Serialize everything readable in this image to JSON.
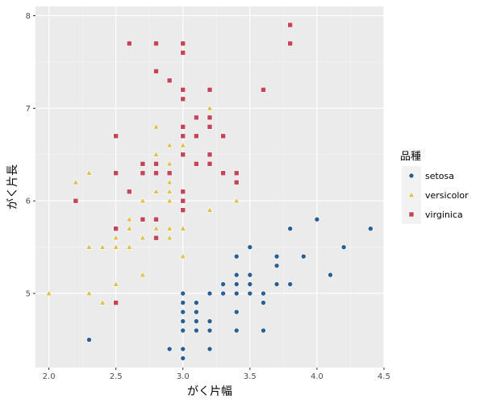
{
  "chart_data": {
    "type": "scatter",
    "title": "",
    "xlabel": "がく片幅",
    "ylabel": "がく片長",
    "xlim": [
      1.9,
      4.5
    ],
    "ylim": [
      4.2,
      8.1
    ],
    "x_ticks": [
      2.0,
      2.5,
      3.0,
      3.5,
      4.0,
      4.5
    ],
    "x_tick_labels": [
      "2.0",
      "2.5",
      "3.0",
      "3.5",
      "4.0",
      "4.5"
    ],
    "y_ticks": [
      5,
      6,
      7,
      8
    ],
    "y_tick_labels": [
      "5",
      "6",
      "7",
      "8"
    ],
    "grid": true,
    "legend": {
      "title": "品種",
      "placement": "right"
    },
    "series": [
      {
        "name": "setosa",
        "marker": "circle",
        "color": "#2b5f93",
        "points": [
          [
            2.3,
            4.5
          ],
          [
            2.9,
            4.4
          ],
          [
            3.0,
            4.4
          ],
          [
            3.2,
            4.4
          ],
          [
            3.0,
            4.3
          ],
          [
            3.0,
            5.0
          ],
          [
            3.0,
            4.9
          ],
          [
            3.0,
            4.8
          ],
          [
            3.0,
            4.7
          ],
          [
            3.0,
            4.6
          ],
          [
            3.1,
            4.9
          ],
          [
            3.1,
            4.8
          ],
          [
            3.1,
            4.7
          ],
          [
            3.1,
            4.6
          ],
          [
            3.2,
            5.0
          ],
          [
            3.2,
            4.7
          ],
          [
            3.2,
            4.6
          ],
          [
            3.3,
            5.0
          ],
          [
            3.3,
            5.1
          ],
          [
            3.4,
            5.4
          ],
          [
            3.4,
            5.2
          ],
          [
            3.4,
            5.1
          ],
          [
            3.4,
            5.0
          ],
          [
            3.4,
            4.8
          ],
          [
            3.4,
            4.6
          ],
          [
            3.5,
            5.5
          ],
          [
            3.5,
            5.2
          ],
          [
            3.5,
            5.1
          ],
          [
            3.5,
            5.0
          ],
          [
            3.6,
            5.0
          ],
          [
            3.6,
            4.9
          ],
          [
            3.6,
            4.6
          ],
          [
            3.7,
            5.4
          ],
          [
            3.7,
            5.3
          ],
          [
            3.7,
            5.1
          ],
          [
            3.8,
            5.7
          ],
          [
            3.8,
            5.1
          ],
          [
            3.9,
            5.4
          ],
          [
            4.0,
            5.8
          ],
          [
            4.1,
            5.2
          ],
          [
            4.2,
            5.5
          ],
          [
            4.4,
            5.7
          ]
        ]
      },
      {
        "name": "versicolor",
        "marker": "triangle",
        "color": "#e0c04e",
        "points": [
          [
            2.0,
            5.0
          ],
          [
            2.2,
            6.2
          ],
          [
            2.2,
            6.0
          ],
          [
            2.3,
            6.3
          ],
          [
            2.3,
            5.5
          ],
          [
            2.3,
            5.0
          ],
          [
            2.4,
            5.5
          ],
          [
            2.4,
            4.9
          ],
          [
            2.5,
            5.7
          ],
          [
            2.5,
            5.6
          ],
          [
            2.5,
            5.5
          ],
          [
            2.5,
            5.1
          ],
          [
            2.6,
            5.8
          ],
          [
            2.6,
            5.7
          ],
          [
            2.6,
            5.5
          ],
          [
            2.7,
            6.0
          ],
          [
            2.7,
            5.8
          ],
          [
            2.7,
            5.6
          ],
          [
            2.7,
            5.2
          ],
          [
            2.8,
            6.8
          ],
          [
            2.8,
            6.5
          ],
          [
            2.8,
            6.1
          ],
          [
            2.8,
            5.7
          ],
          [
            2.9,
            6.6
          ],
          [
            2.9,
            6.4
          ],
          [
            2.9,
            6.2
          ],
          [
            2.9,
            6.1
          ],
          [
            2.9,
            6.0
          ],
          [
            2.9,
            5.7
          ],
          [
            2.9,
            5.6
          ],
          [
            3.0,
            6.7
          ],
          [
            3.0,
            6.6
          ],
          [
            3.0,
            6.1
          ],
          [
            3.0,
            5.9
          ],
          [
            3.0,
            5.7
          ],
          [
            3.0,
            5.4
          ],
          [
            3.2,
            7.0
          ],
          [
            3.2,
            6.4
          ],
          [
            3.2,
            5.9
          ],
          [
            3.3,
            6.3
          ],
          [
            3.4,
            6.0
          ]
        ]
      },
      {
        "name": "virginica",
        "marker": "square",
        "color": "#c2455a",
        "points": [
          [
            2.2,
            6.0
          ],
          [
            2.5,
            6.7
          ],
          [
            2.5,
            6.3
          ],
          [
            2.5,
            5.7
          ],
          [
            2.5,
            4.9
          ],
          [
            2.6,
            7.7
          ],
          [
            2.6,
            6.1
          ],
          [
            2.7,
            6.4
          ],
          [
            2.7,
            6.3
          ],
          [
            2.7,
            5.8
          ],
          [
            2.8,
            7.7
          ],
          [
            2.8,
            7.4
          ],
          [
            2.8,
            6.4
          ],
          [
            2.8,
            6.3
          ],
          [
            2.8,
            5.8
          ],
          [
            2.8,
            5.6
          ],
          [
            2.9,
            7.3
          ],
          [
            2.9,
            6.3
          ],
          [
            3.0,
            7.7
          ],
          [
            3.0,
            7.6
          ],
          [
            3.0,
            7.2
          ],
          [
            3.0,
            7.1
          ],
          [
            3.0,
            6.8
          ],
          [
            3.0,
            6.7
          ],
          [
            3.0,
            6.5
          ],
          [
            3.0,
            6.1
          ],
          [
            3.0,
            6.0
          ],
          [
            3.0,
            5.9
          ],
          [
            3.1,
            6.9
          ],
          [
            3.1,
            6.7
          ],
          [
            3.1,
            6.4
          ],
          [
            3.2,
            7.2
          ],
          [
            3.2,
            6.9
          ],
          [
            3.2,
            6.8
          ],
          [
            3.2,
            6.5
          ],
          [
            3.2,
            6.4
          ],
          [
            3.3,
            6.7
          ],
          [
            3.3,
            6.3
          ],
          [
            3.4,
            6.3
          ],
          [
            3.4,
            6.2
          ],
          [
            3.6,
            7.2
          ],
          [
            3.8,
            7.9
          ],
          [
            3.8,
            7.7
          ]
        ]
      }
    ]
  }
}
